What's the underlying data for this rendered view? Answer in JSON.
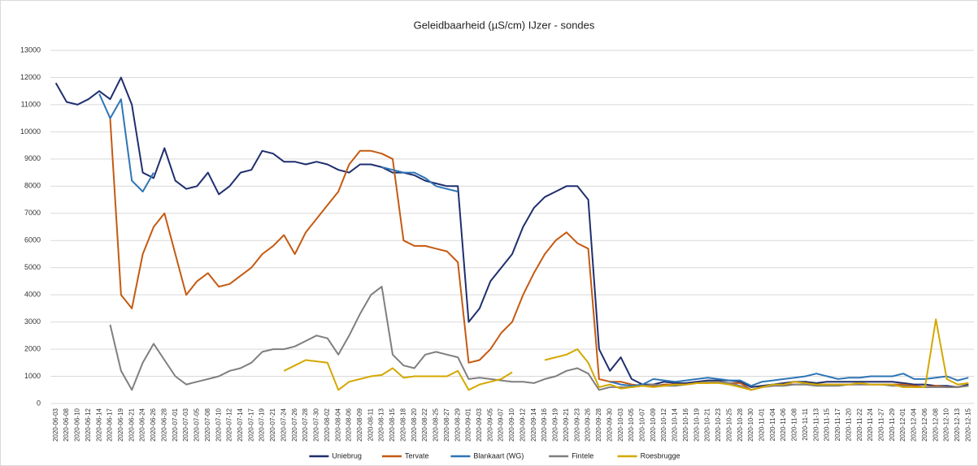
{
  "chart_data": {
    "type": "line",
    "title": "Geleidbaarheid (µS/cm) IJzer - sondes",
    "categories": [
      "2020-06-03",
      "2020-06-08",
      "2020-06-10",
      "2020-06-12",
      "2020-06-14",
      "2020-06-17",
      "2020-06-19",
      "2020-06-21",
      "2020-06-24",
      "2020-06-26",
      "2020-06-28",
      "2020-07-01",
      "2020-07-03",
      "2020-07-05",
      "2020-07-08",
      "2020-07-10",
      "2020-07-12",
      "2020-07-14",
      "2020-07-17",
      "2020-07-19",
      "2020-07-21",
      "2020-07-24",
      "2020-07-26",
      "2020-07-28",
      "2020-07-30",
      "2020-08-02",
      "2020-08-04",
      "2020-08-06",
      "2020-08-09",
      "2020-08-11",
      "2020-08-13",
      "2020-08-15",
      "2020-08-18",
      "2020-08-20",
      "2020-08-22",
      "2020-08-25",
      "2020-08-27",
      "2020-08-29",
      "2020-09-01",
      "2020-09-03",
      "2020-09-05",
      "2020-09-07",
      "2020-09-10",
      "2020-09-12",
      "2020-09-14",
      "2020-09-16",
      "2020-09-19",
      "2020-09-21",
      "2020-09-23",
      "2020-09-26",
      "2020-09-28",
      "2020-09-30",
      "2020-10-03",
      "2020-10-05",
      "2020-10-07",
      "2020-10-09",
      "2020-10-12",
      "2020-10-14",
      "2020-10-16",
      "2020-10-19",
      "2020-10-21",
      "2020-10-23",
      "2020-10-25",
      "2020-10-28",
      "2020-10-30",
      "2020-11-01",
      "2020-11-04",
      "2020-11-06",
      "2020-11-08",
      "2020-11-11",
      "2020-11-13",
      "2020-11-15",
      "2020-11-17",
      "2020-11-20",
      "2020-11-22",
      "2020-11-24",
      "2020-11-27",
      "2020-11-29",
      "2020-12-01",
      "2020-12-04",
      "2020-12-06",
      "2020-12-08",
      "2020-12-10",
      "2020-12-13",
      "2020-12-15"
    ],
    "series": [
      {
        "name": "Uniebrug",
        "color": "#1f2f6e",
        "values": [
          11800,
          11100,
          11000,
          11200,
          11500,
          11200,
          12000,
          11000,
          8500,
          8300,
          9400,
          8200,
          7900,
          8000,
          8500,
          7700,
          8000,
          8500,
          8600,
          9300,
          9200,
          8900,
          8900,
          8800,
          8900,
          8800,
          8600,
          8500,
          8800,
          8800,
          8700,
          8500,
          8500,
          8400,
          8200,
          8100,
          8000,
          8000,
          3000,
          3500,
          4500,
          5000,
          5500,
          6500,
          7200,
          7600,
          7800,
          8000,
          8000,
          7500,
          2000,
          1200,
          1700,
          900,
          700,
          700,
          800,
          750,
          750,
          800,
          850,
          850,
          850,
          800,
          600,
          650,
          700,
          750,
          800,
          800,
          750,
          800,
          800,
          800,
          800,
          800,
          800,
          800,
          750,
          700,
          700,
          650,
          650,
          600,
          700
        ]
      },
      {
        "name": "Tervate",
        "color": "#c55a11",
        "values": [
          null,
          null,
          null,
          null,
          null,
          10500,
          4000,
          3500,
          5500,
          6500,
          7000,
          5500,
          4000,
          4500,
          4800,
          4300,
          4400,
          4700,
          5000,
          5500,
          5800,
          6200,
          5500,
          6300,
          6800,
          7300,
          7800,
          8800,
          9300,
          9300,
          9200,
          9000,
          6000,
          5800,
          5800,
          5700,
          5600,
          5200,
          1500,
          1600,
          2000,
          2600,
          3000,
          4000,
          4800,
          5500,
          6000,
          6300,
          5900,
          5700,
          900,
          800,
          800,
          700,
          650,
          650,
          700,
          700,
          700,
          750,
          750,
          800,
          750,
          750,
          500,
          600,
          650,
          700,
          700,
          700,
          700,
          700,
          700,
          700,
          700,
          700,
          700,
          700,
          700,
          650,
          600,
          650,
          600,
          600,
          650
        ]
      },
      {
        "name": "Blankaart (WG)",
        "color": "#2e75b6",
        "values": [
          null,
          null,
          null,
          null,
          11400,
          10500,
          11200,
          8200,
          7800,
          8500,
          null,
          null,
          null,
          null,
          null,
          null,
          null,
          null,
          null,
          null,
          null,
          null,
          null,
          null,
          null,
          null,
          null,
          null,
          null,
          null,
          8700,
          8600,
          8500,
          8500,
          8300,
          8000,
          7900,
          7800,
          null,
          null,
          null,
          null,
          null,
          null,
          null,
          null,
          null,
          null,
          null,
          null,
          null,
          800,
          700,
          650,
          700,
          900,
          850,
          800,
          850,
          900,
          950,
          900,
          850,
          850,
          650,
          800,
          850,
          900,
          950,
          1000,
          1100,
          1000,
          900,
          950,
          950,
          1000,
          1000,
          1000,
          1100,
          900,
          900,
          950,
          1000,
          850,
          950
        ]
      },
      {
        "name": "Fintele",
        "color": "#7f7f7f",
        "values": [
          null,
          null,
          null,
          null,
          null,
          2900,
          1200,
          500,
          1500,
          2200,
          1600,
          1000,
          700,
          800,
          900,
          1000,
          1200,
          1300,
          1500,
          1900,
          2000,
          2000,
          2100,
          2300,
          2500,
          2400,
          1800,
          2500,
          3300,
          4000,
          4300,
          1800,
          1400,
          1300,
          1800,
          1900,
          1800,
          1700,
          900,
          950,
          900,
          850,
          800,
          800,
          750,
          900,
          1000,
          1200,
          1300,
          1100,
          500,
          600,
          600,
          600,
          650,
          700,
          650,
          650,
          700,
          750,
          800,
          800,
          750,
          650,
          500,
          600,
          650,
          650,
          700,
          700,
          650,
          650,
          650,
          700,
          700,
          700,
          700,
          650,
          650,
          600,
          600,
          600,
          600,
          600,
          650
        ]
      },
      {
        "name": "Roesbrugge",
        "color": "#d4a800",
        "values": [
          null,
          null,
          null,
          null,
          null,
          null,
          null,
          null,
          null,
          null,
          null,
          null,
          null,
          null,
          null,
          null,
          null,
          null,
          null,
          null,
          null,
          1200,
          1400,
          1600,
          1550,
          1500,
          500,
          800,
          900,
          1000,
          1050,
          1300,
          950,
          1000,
          1000,
          1000,
          1000,
          1200,
          500,
          700,
          800,
          900,
          1150,
          null,
          null,
          1600,
          1700,
          1800,
          2000,
          1500,
          600,
          700,
          550,
          600,
          650,
          600,
          650,
          700,
          700,
          750,
          750,
          750,
          700,
          600,
          500,
          600,
          700,
          700,
          800,
          750,
          700,
          700,
          700,
          700,
          750,
          700,
          700,
          700,
          600,
          600,
          600,
          3100,
          900,
          700,
          750
        ]
      }
    ],
    "ylim": [
      0,
      13000
    ],
    "yticks": [
      0,
      1000,
      2000,
      3000,
      4000,
      5000,
      6000,
      7000,
      8000,
      9000,
      10000,
      11000,
      12000,
      13000
    ],
    "grid": true,
    "legend": "bottom"
  }
}
